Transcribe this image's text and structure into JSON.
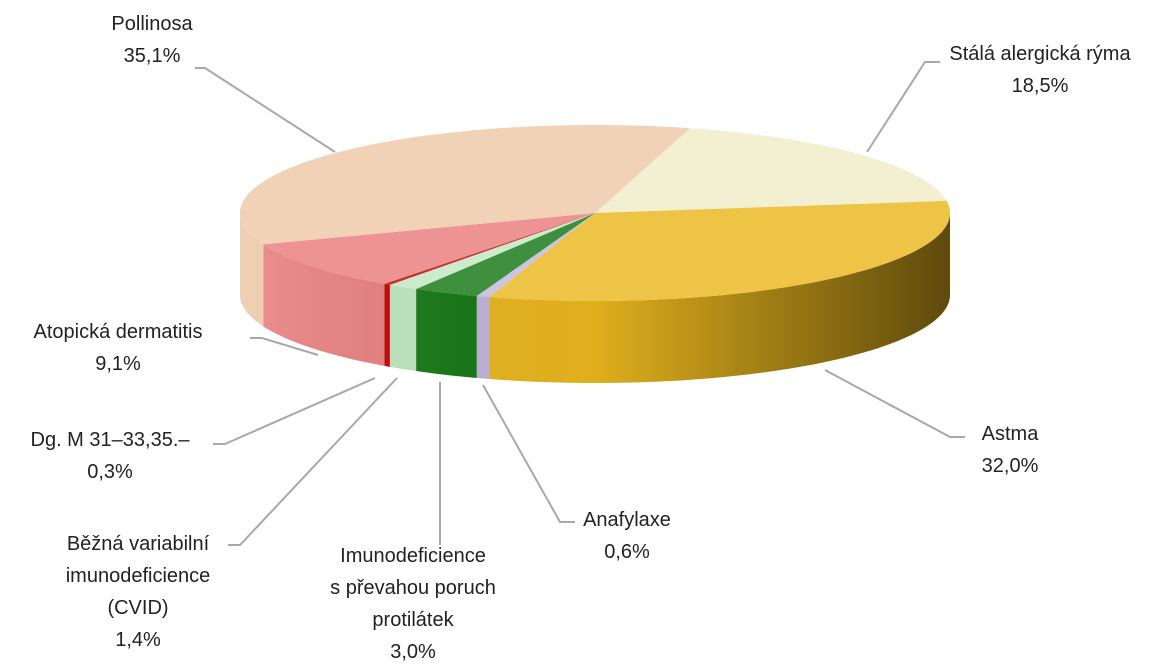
{
  "chart_data": {
    "type": "pie3d",
    "categories": [
      "Stálá alergická rýma",
      "Astma",
      "Anafylaxe",
      "Imunodeficience\ns převahou poruch\nprotilátek",
      "Běžná variabilní\nimunodeficience\n(CVID)",
      "Dg. M 31–33,35.–",
      "Atopická dermatitis",
      "Pollinosa"
    ],
    "values": [
      18.5,
      32.0,
      0.6,
      3.0,
      1.4,
      0.3,
      9.1,
      35.1
    ],
    "value_labels": [
      "18,5%",
      "32,0%",
      "0,6%",
      "3,0%",
      "1,4%",
      "0,3%",
      "9,1%",
      "35,1%"
    ],
    "colors": [
      "#efedc6",
      "#ebb81e",
      "#c2b6dc",
      "#147814",
      "#bfe8bf",
      "#c00000",
      "#e97c7c",
      "#eec8a6"
    ]
  }
}
